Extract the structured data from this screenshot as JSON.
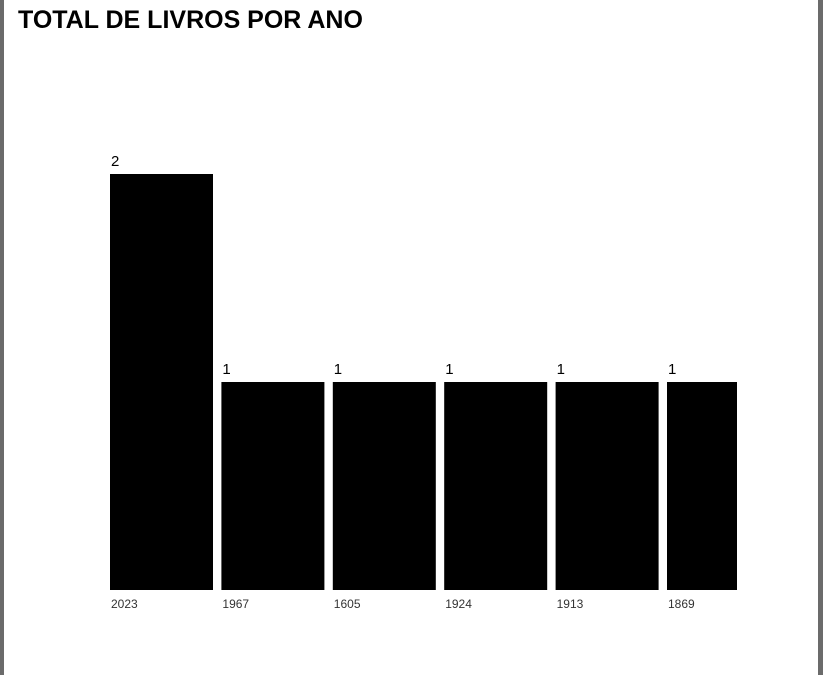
{
  "chart_data": {
    "type": "bar",
    "title": "TOTAL DE LIVROS POR ANO",
    "categories": [
      "2023",
      "1967",
      "1605",
      "1924",
      "1913",
      "1869"
    ],
    "values": [
      2,
      1,
      1,
      1,
      1,
      1
    ],
    "ylim": [
      0,
      2
    ],
    "grid": false,
    "legend": "none",
    "bar_color": "#000000"
  }
}
